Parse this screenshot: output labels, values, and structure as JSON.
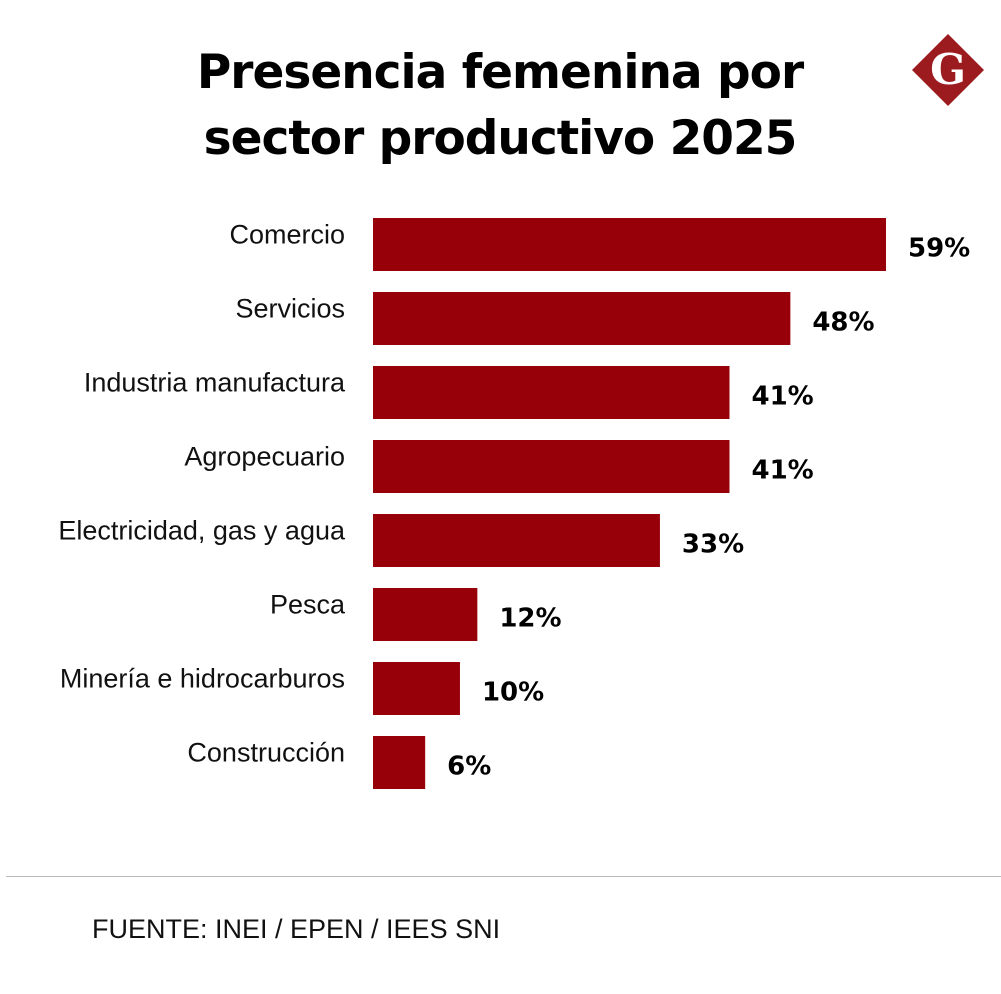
{
  "chart_data": {
    "type": "bar",
    "orientation": "horizontal",
    "title": "Presencia femenina por sector productivo 2025",
    "categories": [
      "Comercio",
      "Servicios",
      "Industria manufactura",
      "Agropecuario",
      "Electricidad, gas y agua",
      "Pesca",
      "Minería e hidrocarburos",
      "Construcción"
    ],
    "values": [
      59,
      48,
      41,
      41,
      33,
      12,
      10,
      6
    ],
    "value_labels": [
      "59%",
      "48%",
      "41%",
      "41%",
      "33%",
      "12%",
      "10%",
      "6%"
    ],
    "xlim": [
      0,
      100
    ],
    "grid": false,
    "bar_color": "#970008"
  },
  "title_lines": [
    "Presencia femenina por",
    "sector productivo 2025"
  ],
  "logo": {
    "letter": "G",
    "color": "#9b1b1f"
  },
  "source": "FUENTE: INEI / EPEN / IEES SNI"
}
